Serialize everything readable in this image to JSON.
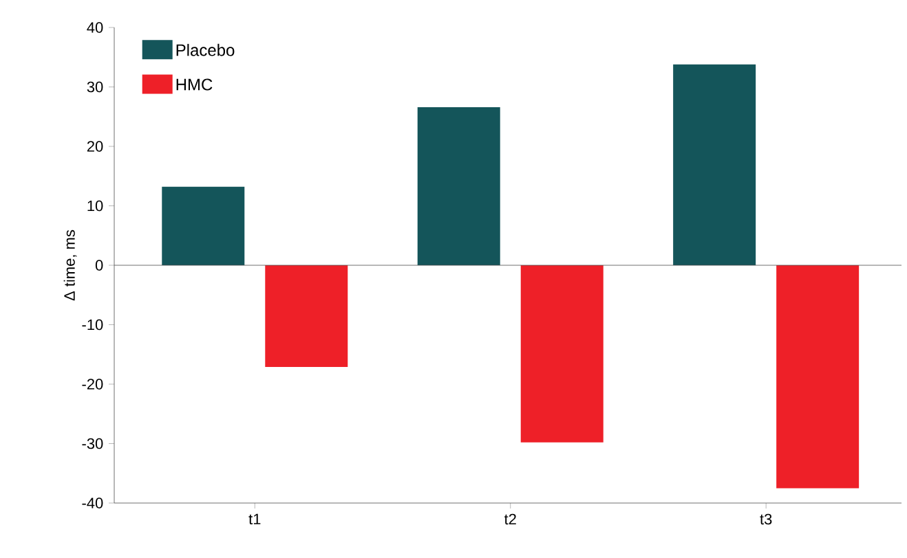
{
  "chart_data": {
    "type": "bar",
    "ylabel": "Δ time, ms",
    "categories": [
      "t1",
      "t2",
      "t3"
    ],
    "series": [
      {
        "name": "Placebo",
        "color": "#14555a",
        "values": [
          13.2,
          26.6,
          33.8
        ]
      },
      {
        "name": "HMC",
        "color": "#ee2028",
        "values": [
          -17.1,
          -29.8,
          -37.5
        ]
      }
    ],
    "ylim": [
      -40,
      40
    ],
    "yticks": [
      -40,
      -30,
      -20,
      -10,
      0,
      10,
      20,
      30,
      40
    ],
    "legend": "top left"
  }
}
